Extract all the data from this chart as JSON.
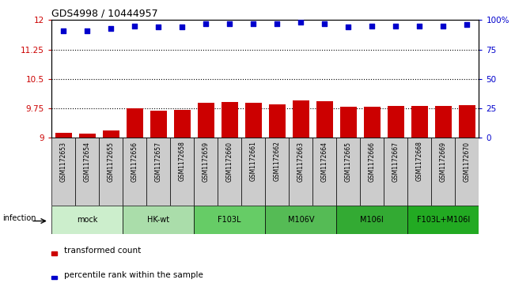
{
  "title": "GDS4998 / 10444957",
  "samples": [
    "GSM1172653",
    "GSM1172654",
    "GSM1172655",
    "GSM1172656",
    "GSM1172657",
    "GSM1172658",
    "GSM1172659",
    "GSM1172660",
    "GSM1172661",
    "GSM1172662",
    "GSM1172663",
    "GSM1172664",
    "GSM1172665",
    "GSM1172666",
    "GSM1172667",
    "GSM1172668",
    "GSM1172669",
    "GSM1172670"
  ],
  "bar_values": [
    9.12,
    9.1,
    9.18,
    9.75,
    9.7,
    9.72,
    9.9,
    9.91,
    9.89,
    9.86,
    9.95,
    9.93,
    9.8,
    9.8,
    9.82,
    9.81,
    9.82,
    9.84
  ],
  "dot_values": [
    91,
    91,
    93,
    95,
    94,
    94,
    97,
    97,
    97,
    97,
    98,
    97,
    94,
    95,
    95,
    95,
    95,
    96
  ],
  "ylim_left": [
    9,
    12
  ],
  "ylim_right": [
    0,
    100
  ],
  "yticks_left": [
    9,
    9.75,
    10.5,
    11.25,
    12
  ],
  "yticks_right": [
    0,
    25,
    50,
    75,
    100
  ],
  "ytick_labels_left": [
    "9",
    "9.75",
    "10.5",
    "11.25",
    "12"
  ],
  "ytick_labels_right": [
    "0",
    "25",
    "50",
    "75",
    "100%"
  ],
  "bar_color": "#cc0000",
  "dot_color": "#0000cc",
  "bar_label_color": "#cc0000",
  "dot_label_color": "#0000cc",
  "groups": [
    {
      "label": "mock",
      "start": 0,
      "end": 3,
      "color": "#cceecc"
    },
    {
      "label": "HK-wt",
      "start": 3,
      "end": 6,
      "color": "#aaddaa"
    },
    {
      "label": "F103L",
      "start": 6,
      "end": 9,
      "color": "#66cc66"
    },
    {
      "label": "M106V",
      "start": 9,
      "end": 12,
      "color": "#55bb55"
    },
    {
      "label": "M106I",
      "start": 12,
      "end": 15,
      "color": "#33aa33"
    },
    {
      "label": "F103L+M106I",
      "start": 15,
      "end": 18,
      "color": "#22aa22"
    }
  ],
  "sample_bg_color": "#cccccc",
  "infection_label": "infection",
  "legend_bar_label": "transformed count",
  "legend_dot_label": "percentile rank within the sample",
  "background_color": "#ffffff"
}
